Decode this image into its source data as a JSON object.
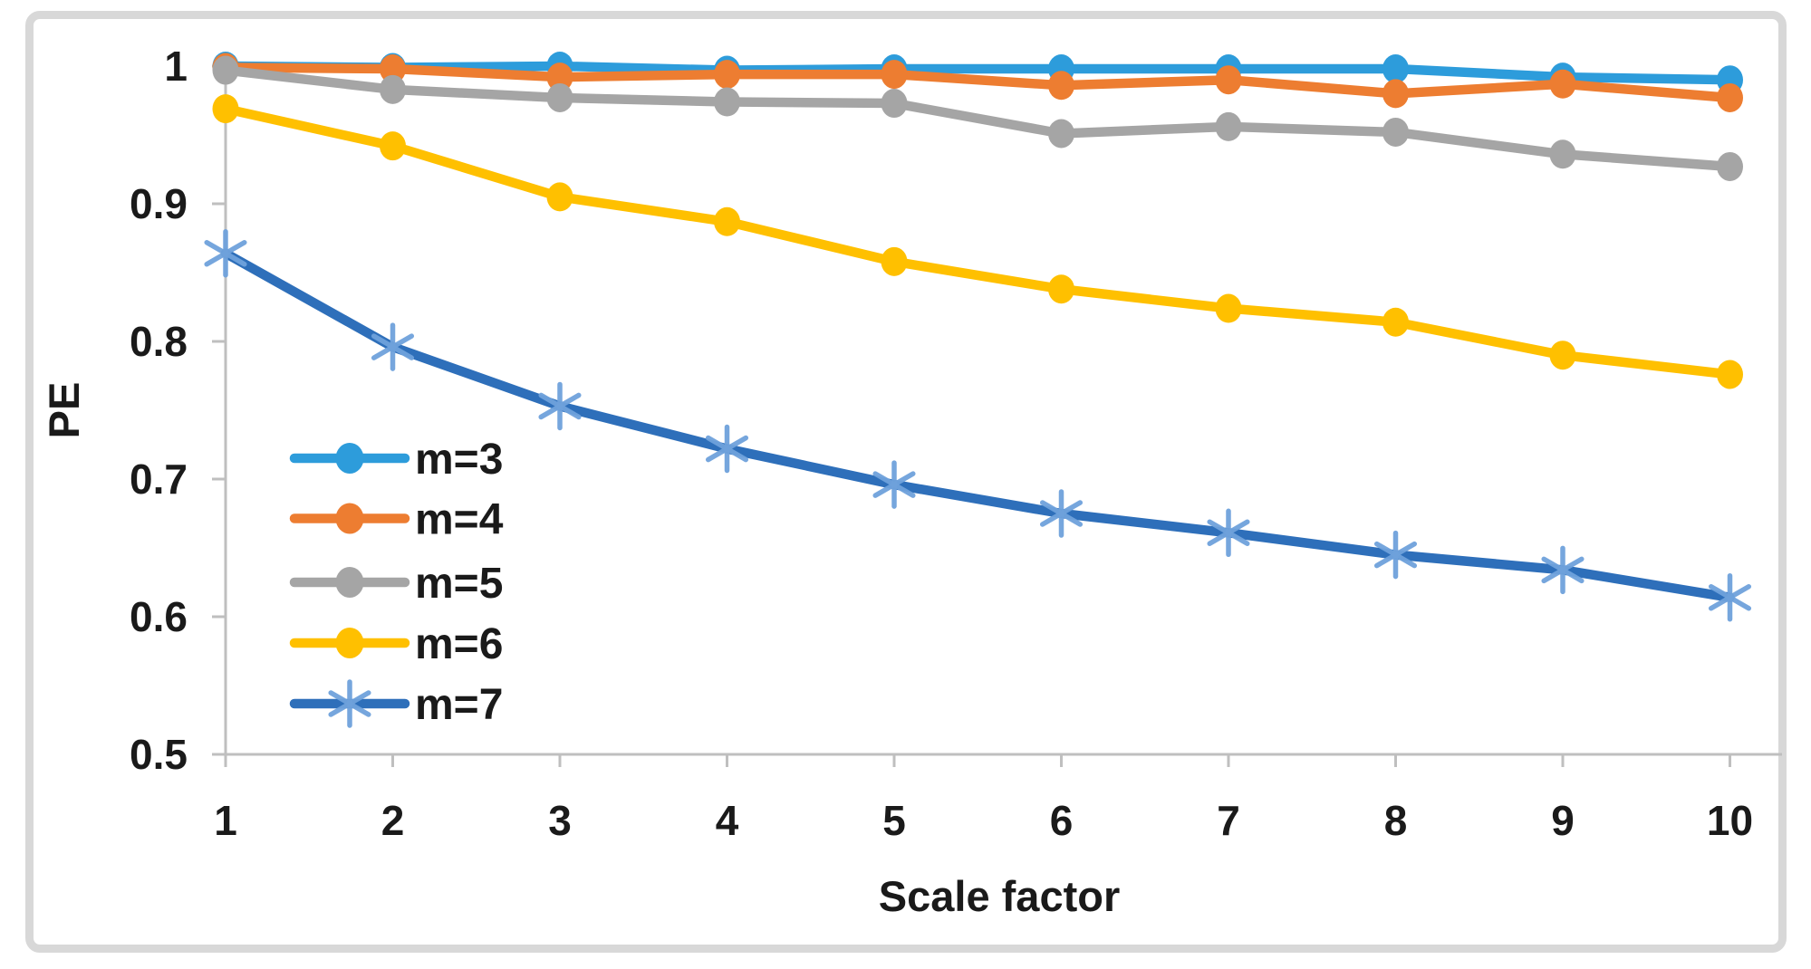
{
  "chart_data": {
    "type": "line",
    "title": "",
    "xlabel": "Scale factor",
    "ylabel": "PE",
    "x": [
      1,
      2,
      3,
      4,
      5,
      6,
      7,
      8,
      9,
      10
    ],
    "x_tick_labels": [
      "1",
      "2",
      "3",
      "4",
      "5",
      "6",
      "7",
      "8",
      "9",
      "10"
    ],
    "y_ticks": [
      1.0,
      0.9,
      0.8,
      0.7,
      0.6,
      0.5
    ],
    "y_tick_labels": [
      "1",
      "0.9",
      "0.8",
      "0.7",
      "0.6",
      "0.5"
    ],
    "ylim": [
      0.5,
      1.0
    ],
    "grid": false,
    "legend_position": "inside-left",
    "series": [
      {
        "name": "m=3",
        "color": "#2d9cdb",
        "marker": "circle",
        "values": [
          1.0,
          0.999,
          1.0,
          0.997,
          0.998,
          0.998,
          0.998,
          0.998,
          0.992,
          0.99
        ]
      },
      {
        "name": "m=4",
        "color": "#ed7d31",
        "marker": "circle",
        "values": [
          0.999,
          0.998,
          0.992,
          0.994,
          0.994,
          0.986,
          0.99,
          0.98,
          0.987,
          0.977
        ]
      },
      {
        "name": "m=5",
        "color": "#a5a5a5",
        "marker": "circle",
        "values": [
          0.997,
          0.983,
          0.977,
          0.974,
          0.973,
          0.951,
          0.956,
          0.952,
          0.936,
          0.927
        ]
      },
      {
        "name": "m=6",
        "color": "#ffc000",
        "marker": "circle",
        "values": [
          0.969,
          0.942,
          0.905,
          0.887,
          0.858,
          0.838,
          0.824,
          0.814,
          0.79,
          0.776
        ]
      },
      {
        "name": "m=7",
        "color": "#2e6fba",
        "marker": "asterisk",
        "marker_color": "#6fa2dc",
        "values": [
          0.864,
          0.796,
          0.753,
          0.722,
          0.696,
          0.675,
          0.661,
          0.645,
          0.634,
          0.614
        ]
      }
    ]
  },
  "frame": {
    "background": "#ffffff",
    "border_color": "#d8d8d8",
    "axis_color": "#bfbfbf",
    "text_color": "#1a1a1a"
  }
}
